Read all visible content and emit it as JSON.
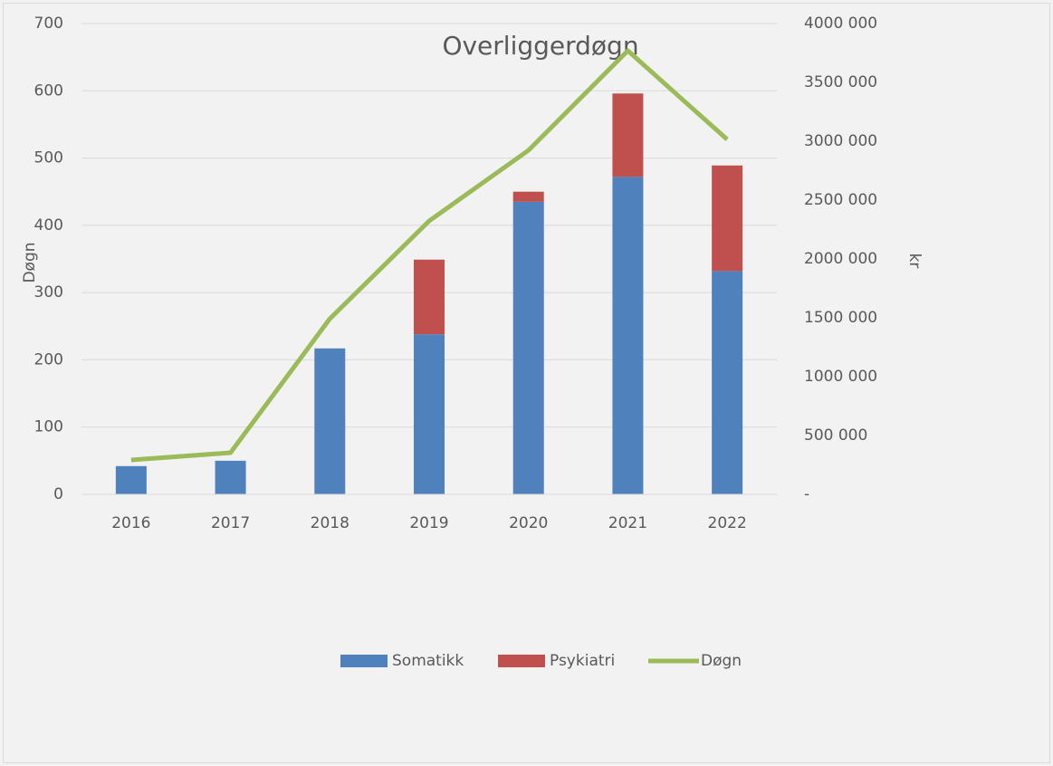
{
  "chart_data": {
    "type": "bar",
    "title": "Overliggerdøgn",
    "ylabel": "Døgn",
    "y2label": "kr",
    "categories": [
      "2016",
      "2017",
      "2018",
      "2019",
      "2020",
      "2021",
      "2022"
    ],
    "series": [
      {
        "name": "Somatikk",
        "type": "bar",
        "stacked": true,
        "color": "#4f81bd",
        "values": [
          42,
          50,
          217,
          238,
          435,
          472,
          332
        ]
      },
      {
        "name": "Psykiatri",
        "type": "bar",
        "stacked": true,
        "color": "#c0504d",
        "values": [
          0,
          0,
          0,
          111,
          15,
          124,
          157
        ]
      },
      {
        "name": "Døgn",
        "type": "line",
        "axis": "y2",
        "color": "#9bbb59",
        "values": [
          292000,
          354000,
          1492000,
          2323000,
          2923000,
          3769000,
          3015000
        ]
      }
    ],
    "ylim": [
      0,
      700
    ],
    "yticks": [
      0,
      100,
      200,
      300,
      400,
      500,
      600,
      700
    ],
    "y2lim": [
      0,
      4000000
    ],
    "y2ticks": [
      {
        "value": 0,
        "label": "-"
      },
      {
        "value": 500000,
        "label": "500 000"
      },
      {
        "value": 1000000,
        "label": "1000 000"
      },
      {
        "value": 1500000,
        "label": "1500 000"
      },
      {
        "value": 2000000,
        "label": "2000 000"
      },
      {
        "value": 2500000,
        "label": "2500 000"
      },
      {
        "value": 3000000,
        "label": "3000 000"
      },
      {
        "value": 3500000,
        "label": "3500 000"
      },
      {
        "value": 4000000,
        "label": "4000 000"
      }
    ],
    "grid": true,
    "legend": "bottom"
  }
}
